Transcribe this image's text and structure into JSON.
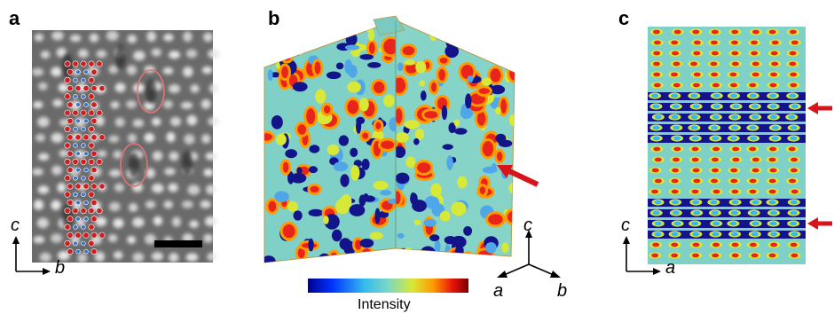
{
  "panels": [
    {
      "label": "a",
      "axis_vertical": "c",
      "axis_horizontal": "b"
    },
    {
      "label": "b",
      "axis_vertical": "c",
      "axis_left": "a",
      "axis_right": "b"
    },
    {
      "label": "c",
      "axis_vertical": "c",
      "axis_horizontal": "a"
    }
  ],
  "colorbar": {
    "label": "Intensity",
    "stops": [
      "#00008f",
      "#0033ff",
      "#35b9ee",
      "#7ad8c4",
      "#d8e838",
      "#ff9a00",
      "#e8140a",
      "#7a0000"
    ]
  },
  "colors": {
    "arrow": "#d7141a",
    "ellipse": "#e07575",
    "atom_red": "#cc1f1f",
    "atom_blue": "#3f74c9",
    "map_background": "#7fd0c6",
    "map_low": "#14148a",
    "map_high": "#e8241b"
  }
}
